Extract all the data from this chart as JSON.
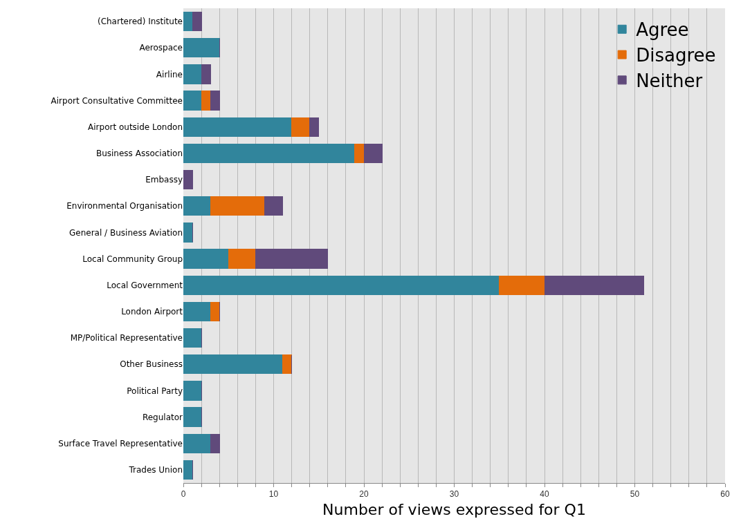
{
  "chart_data": {
    "type": "bar",
    "orientation": "horizontal",
    "stacked": true,
    "xlabel": "Number of views expressed for Q1",
    "categories": [
      "(Chartered) Institute",
      "Aerospace",
      "Airline",
      "Airport Consultative Committee",
      "Airport outside London",
      "Business Association",
      "Embassy",
      "Environmental Organisation",
      "General / Business Aviation",
      "Local Community Group",
      "Local Government",
      "London Airport",
      "MP/Political Representative",
      "Other Business",
      "Political Party",
      "Regulator",
      "Surface Travel Representative",
      "Trades Union"
    ],
    "series": [
      {
        "name": "Agree",
        "color": "#31859c",
        "values": [
          1,
          4,
          2,
          2,
          12,
          19,
          0,
          3,
          1,
          5,
          35,
          3,
          2,
          11,
          2,
          2,
          3,
          1
        ]
      },
      {
        "name": "Disagree",
        "color": "#e46c0a",
        "values": [
          0,
          0,
          0,
          1,
          2,
          1,
          0,
          6,
          0,
          3,
          5,
          1,
          0,
          1,
          0,
          0,
          0,
          0
        ]
      },
      {
        "name": "Neither",
        "color": "#604a7b",
        "values": [
          1,
          0,
          1,
          1,
          1,
          2,
          1,
          2,
          0,
          8,
          11,
          0,
          0,
          0,
          0,
          0,
          1,
          0
        ]
      }
    ],
    "xlim": [
      0,
      60
    ],
    "xticks": [
      0,
      {
        "value": 2,
        "label": null
      },
      {
        "value": 4,
        "label": null
      },
      {
        "value": 6,
        "label": null
      },
      {
        "value": 8,
        "label": null
      },
      10,
      {
        "value": 12,
        "label": null
      },
      {
        "value": 14,
        "label": null
      },
      {
        "value": 16,
        "label": null
      },
      {
        "value": 18,
        "label": null
      },
      20,
      {
        "value": 22,
        "label": null
      },
      {
        "value": 24,
        "label": null
      },
      {
        "value": 26,
        "label": null
      },
      {
        "value": 28,
        "label": null
      },
      30,
      {
        "value": 32,
        "label": null
      },
      {
        "value": 34,
        "label": null
      },
      {
        "value": 36,
        "label": null
      },
      {
        "value": 38,
        "label": null
      },
      40,
      {
        "value": 42,
        "label": null
      },
      {
        "value": 44,
        "label": null
      },
      {
        "value": 46,
        "label": null
      },
      {
        "value": 48,
        "label": null
      },
      50,
      {
        "value": 52,
        "label": null
      },
      {
        "value": 54,
        "label": null
      },
      {
        "value": 56,
        "label": null
      },
      {
        "value": 58,
        "label": null
      },
      60
    ],
    "grid": "x",
    "legend": "top right"
  }
}
